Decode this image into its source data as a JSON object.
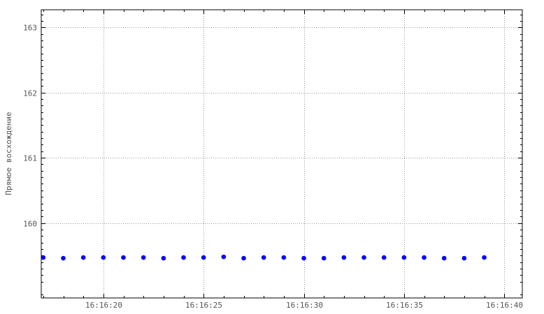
{
  "chart_data": {
    "type": "scatter",
    "ylabel": "Прямое восхождение",
    "xlabel": "",
    "title": "",
    "grid": true,
    "legend": "none",
    "point_color": "#0000ff",
    "x_ticks": [
      "16:16:20",
      "16:16:25",
      "16:16:30",
      "16:16:35",
      "16:16:40"
    ],
    "x_tick_values": [
      20,
      25,
      30,
      35,
      40
    ],
    "y_ticks": [
      "160",
      "161",
      "162",
      "163"
    ],
    "y_tick_values": [
      160,
      161,
      162,
      163
    ],
    "xlim": [
      16.9,
      40.9
    ],
    "ylim": [
      158.85,
      163.27
    ],
    "x_unit_note": "seconds past 16:16:00",
    "points": [
      {
        "x": 17,
        "y": 159.47
      },
      {
        "x": 18,
        "y": 159.46
      },
      {
        "x": 19,
        "y": 159.47
      },
      {
        "x": 20,
        "y": 159.47
      },
      {
        "x": 21,
        "y": 159.47
      },
      {
        "x": 22,
        "y": 159.47
      },
      {
        "x": 23,
        "y": 159.46
      },
      {
        "x": 24,
        "y": 159.47
      },
      {
        "x": 25,
        "y": 159.47
      },
      {
        "x": 26,
        "y": 159.48
      },
      {
        "x": 27,
        "y": 159.46
      },
      {
        "x": 28,
        "y": 159.47
      },
      {
        "x": 29,
        "y": 159.47
      },
      {
        "x": 30,
        "y": 159.46
      },
      {
        "x": 31,
        "y": 159.46
      },
      {
        "x": 32,
        "y": 159.47
      },
      {
        "x": 33,
        "y": 159.47
      },
      {
        "x": 34,
        "y": 159.47
      },
      {
        "x": 35,
        "y": 159.47
      },
      {
        "x": 36,
        "y": 159.47
      },
      {
        "x": 37,
        "y": 159.46
      },
      {
        "x": 38,
        "y": 159.46
      },
      {
        "x": 39,
        "y": 159.47
      }
    ]
  }
}
